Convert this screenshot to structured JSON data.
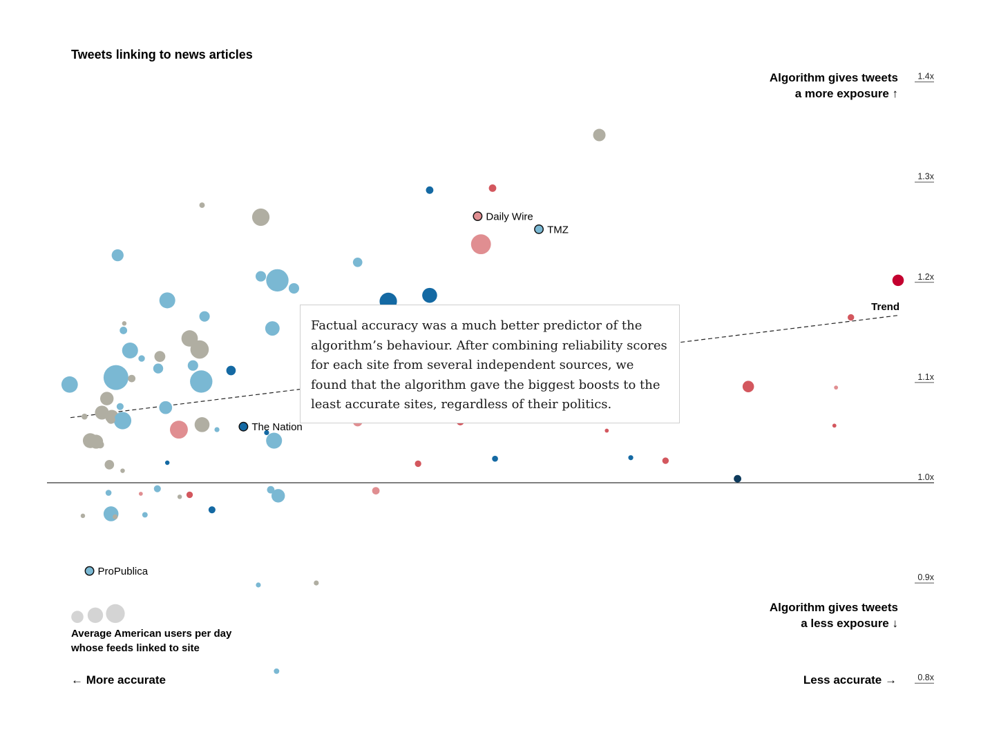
{
  "colors": {
    "light_blue": "#7ab8d3",
    "dark_blue": "#1469a3",
    "navy": "#0d3a5c",
    "grey": "#b0aea2",
    "light_red": "#e08e91",
    "red": "#d3575e",
    "crimson": "#c3002f",
    "legend_grey": "#d4d4d4"
  },
  "chart_data": {
    "type": "scatter",
    "title": "Tweets linking to news articles",
    "xlabel_left": "← More accurate",
    "xlabel_right": "Less accurate →",
    "y_label_top": [
      "Algorithm gives tweets",
      "a more exposure ↑"
    ],
    "y_label_bottom": [
      "Algorithm gives tweets",
      "a less exposure ↓"
    ],
    "x_range": [
      0,
      100
    ],
    "ylim": [
      0.8,
      1.45
    ],
    "y_ticks": [
      {
        "value": 1.4,
        "label": "1.4x"
      },
      {
        "value": 1.3,
        "label": "1.3x"
      },
      {
        "value": 1.2,
        "label": "1.2x"
      },
      {
        "value": 1.1,
        "label": "1.1x"
      },
      {
        "value": 1.0,
        "label": "1.0x"
      },
      {
        "value": 0.9,
        "label": "0.9x"
      },
      {
        "value": 0.8,
        "label": "0.8x"
      }
    ],
    "baseline": 1.0,
    "trend": {
      "label": "Trend",
      "from": [
        0,
        1.065
      ],
      "to": [
        100,
        1.167
      ]
    },
    "size_legend": {
      "label": [
        "Average American users per day",
        "whose feeds linked to site"
      ],
      "sizes": [
        2,
        3,
        4
      ]
    },
    "annotation": "Factual accuracy was a much better predictor of the algorithm’s behaviour. After combining reliability scores for each site from several independent sources, we found that the algorithm gave the biggest boosts to the least accurate sites, regardless of their politics.",
    "labeled_points": [
      {
        "name": "Daily Wire",
        "x": 49.2,
        "y": 1.266,
        "color": "light_red"
      },
      {
        "name": "TMZ",
        "x": 56.6,
        "y": 1.253,
        "color": "light_blue"
      },
      {
        "name": "The Nation",
        "x": 20.9,
        "y": 1.056,
        "color": "dark_blue"
      },
      {
        "name": "ProPublica",
        "x": 2.3,
        "y": 0.912,
        "color": "light_blue"
      }
    ],
    "points": [
      {
        "x": 63.9,
        "y": 1.347,
        "s": 2.5,
        "c": "grey"
      },
      {
        "x": 43.4,
        "y": 1.292,
        "s": 1.5,
        "c": "dark_blue"
      },
      {
        "x": 51.0,
        "y": 1.294,
        "s": 1.5,
        "c": "red"
      },
      {
        "x": 15.9,
        "y": 1.277,
        "s": 1.1,
        "c": "grey"
      },
      {
        "x": 23.0,
        "y": 1.265,
        "s": 3.5,
        "c": "grey"
      },
      {
        "x": 49.6,
        "y": 1.238,
        "s": 4.0,
        "c": "light_red"
      },
      {
        "x": 5.7,
        "y": 1.227,
        "s": 2.4,
        "c": "light_blue"
      },
      {
        "x": 34.7,
        "y": 1.22,
        "s": 1.9,
        "c": "light_blue"
      },
      {
        "x": 23.0,
        "y": 1.206,
        "s": 2.1,
        "c": "light_blue"
      },
      {
        "x": 25.0,
        "y": 1.202,
        "s": 4.5,
        "c": "light_blue"
      },
      {
        "x": 27.0,
        "y": 1.194,
        "s": 2.1,
        "c": "light_blue"
      },
      {
        "x": 11.7,
        "y": 1.182,
        "s": 3.2,
        "c": "light_blue"
      },
      {
        "x": 38.4,
        "y": 1.181,
        "s": 3.5,
        "c": "dark_blue"
      },
      {
        "x": 43.4,
        "y": 1.187,
        "s": 3.0,
        "c": "dark_blue"
      },
      {
        "x": 16.2,
        "y": 1.166,
        "s": 2.1,
        "c": "light_blue"
      },
      {
        "x": 6.5,
        "y": 1.159,
        "s": 0.9,
        "c": "grey"
      },
      {
        "x": 6.4,
        "y": 1.152,
        "s": 1.5,
        "c": "light_blue"
      },
      {
        "x": 24.4,
        "y": 1.154,
        "s": 2.9,
        "c": "light_blue"
      },
      {
        "x": 14.4,
        "y": 1.144,
        "s": 3.3,
        "c": "grey"
      },
      {
        "x": 15.6,
        "y": 1.133,
        "s": 3.7,
        "c": "grey"
      },
      {
        "x": 7.2,
        "y": 1.132,
        "s": 3.2,
        "c": "light_blue"
      },
      {
        "x": 10.8,
        "y": 1.126,
        "s": 2.2,
        "c": "grey"
      },
      {
        "x": 8.6,
        "y": 1.124,
        "s": 1.3,
        "c": "light_blue"
      },
      {
        "x": 14.8,
        "y": 1.117,
        "s": 2.1,
        "c": "light_blue"
      },
      {
        "x": 10.6,
        "y": 1.114,
        "s": 2.0,
        "c": "light_blue"
      },
      {
        "x": 19.4,
        "y": 1.112,
        "s": 1.9,
        "c": "dark_blue"
      },
      {
        "x": 5.5,
        "y": 1.105,
        "s": 5.0,
        "c": "light_blue"
      },
      {
        "x": 15.8,
        "y": 1.101,
        "s": 4.5,
        "c": "light_blue"
      },
      {
        "x": -0.1,
        "y": 1.098,
        "s": 3.3,
        "c": "light_blue"
      },
      {
        "x": 7.4,
        "y": 1.104,
        "s": 1.5,
        "c": "grey"
      },
      {
        "x": 4.4,
        "y": 1.084,
        "s": 2.7,
        "c": "grey"
      },
      {
        "x": 11.5,
        "y": 1.075,
        "s": 2.6,
        "c": "light_blue"
      },
      {
        "x": 6.0,
        "y": 1.076,
        "s": 1.4,
        "c": "light_blue"
      },
      {
        "x": 3.8,
        "y": 1.07,
        "s": 2.8,
        "c": "grey"
      },
      {
        "x": 5.0,
        "y": 1.066,
        "s": 2.7,
        "c": "grey"
      },
      {
        "x": 1.7,
        "y": 1.066,
        "s": 1.2,
        "c": "grey"
      },
      {
        "x": 6.3,
        "y": 1.062,
        "s": 3.5,
        "c": "light_blue"
      },
      {
        "x": 4.9,
        "y": 1.063,
        "s": 1.7,
        "c": "grey"
      },
      {
        "x": 13.1,
        "y": 1.053,
        "s": 3.6,
        "c": "light_red"
      },
      {
        "x": 15.9,
        "y": 1.058,
        "s": 3.0,
        "c": "grey"
      },
      {
        "x": 17.7,
        "y": 1.053,
        "s": 1.0,
        "c": "light_blue"
      },
      {
        "x": 23.7,
        "y": 1.05,
        "s": 1.0,
        "c": "dark_blue"
      },
      {
        "x": 34.7,
        "y": 1.061,
        "s": 1.9,
        "c": "light_red"
      },
      {
        "x": 47.1,
        "y": 1.061,
        "s": 1.5,
        "c": "red"
      },
      {
        "x": 64.8,
        "y": 1.052,
        "s": 0.8,
        "c": "red"
      },
      {
        "x": 2.4,
        "y": 1.042,
        "s": 3.0,
        "c": "grey"
      },
      {
        "x": 3.1,
        "y": 1.041,
        "s": 2.8,
        "c": "grey"
      },
      {
        "x": 3.6,
        "y": 1.038,
        "s": 1.5,
        "c": "grey"
      },
      {
        "x": 24.6,
        "y": 1.042,
        "s": 3.2,
        "c": "light_blue"
      },
      {
        "x": 42.0,
        "y": 1.019,
        "s": 1.3,
        "c": "red"
      },
      {
        "x": 51.3,
        "y": 1.024,
        "s": 1.2,
        "c": "dark_blue"
      },
      {
        "x": 67.7,
        "y": 1.025,
        "s": 1.0,
        "c": "dark_blue"
      },
      {
        "x": 71.9,
        "y": 1.022,
        "s": 1.3,
        "c": "red"
      },
      {
        "x": 11.7,
        "y": 1.02,
        "s": 0.9,
        "c": "dark_blue"
      },
      {
        "x": 4.7,
        "y": 1.018,
        "s": 1.9,
        "c": "grey"
      },
      {
        "x": 6.3,
        "y": 1.012,
        "s": 0.9,
        "c": "grey"
      },
      {
        "x": 80.6,
        "y": 1.004,
        "s": 1.5,
        "c": "navy"
      },
      {
        "x": 81.9,
        "y": 1.096,
        "s": 2.3,
        "c": "red"
      },
      {
        "x": 92.5,
        "y": 1.095,
        "s": 0.8,
        "c": "light_red"
      },
      {
        "x": 94.3,
        "y": 1.165,
        "s": 1.3,
        "c": "red"
      },
      {
        "x": 92.3,
        "y": 1.057,
        "s": 0.8,
        "c": "red"
      },
      {
        "x": 100.0,
        "y": 1.202,
        "s": 2.3,
        "c": "crimson"
      },
      {
        "x": 10.5,
        "y": 0.994,
        "s": 1.4,
        "c": "light_blue"
      },
      {
        "x": 4.6,
        "y": 0.99,
        "s": 1.2,
        "c": "light_blue"
      },
      {
        "x": 8.5,
        "y": 0.989,
        "s": 0.8,
        "c": "light_red"
      },
      {
        "x": 13.2,
        "y": 0.986,
        "s": 0.9,
        "c": "grey"
      },
      {
        "x": 14.4,
        "y": 0.988,
        "s": 1.3,
        "c": "red"
      },
      {
        "x": 24.2,
        "y": 0.993,
        "s": 1.5,
        "c": "light_blue"
      },
      {
        "x": 25.1,
        "y": 0.987,
        "s": 2.7,
        "c": "light_blue"
      },
      {
        "x": 36.9,
        "y": 0.992,
        "s": 1.5,
        "c": "light_red"
      },
      {
        "x": 17.1,
        "y": 0.973,
        "s": 1.4,
        "c": "dark_blue"
      },
      {
        "x": 4.9,
        "y": 0.969,
        "s": 3.0,
        "c": "light_blue"
      },
      {
        "x": 5.4,
        "y": 0.966,
        "s": 1.0,
        "c": "grey"
      },
      {
        "x": 9.0,
        "y": 0.968,
        "s": 1.1,
        "c": "light_blue"
      },
      {
        "x": 1.5,
        "y": 0.967,
        "s": 0.9,
        "c": "grey"
      },
      {
        "x": 22.7,
        "y": 0.898,
        "s": 1.0,
        "c": "light_blue"
      },
      {
        "x": 29.7,
        "y": 0.9,
        "s": 1.0,
        "c": "grey"
      },
      {
        "x": 24.9,
        "y": 0.812,
        "s": 1.1,
        "c": "light_blue"
      }
    ]
  }
}
